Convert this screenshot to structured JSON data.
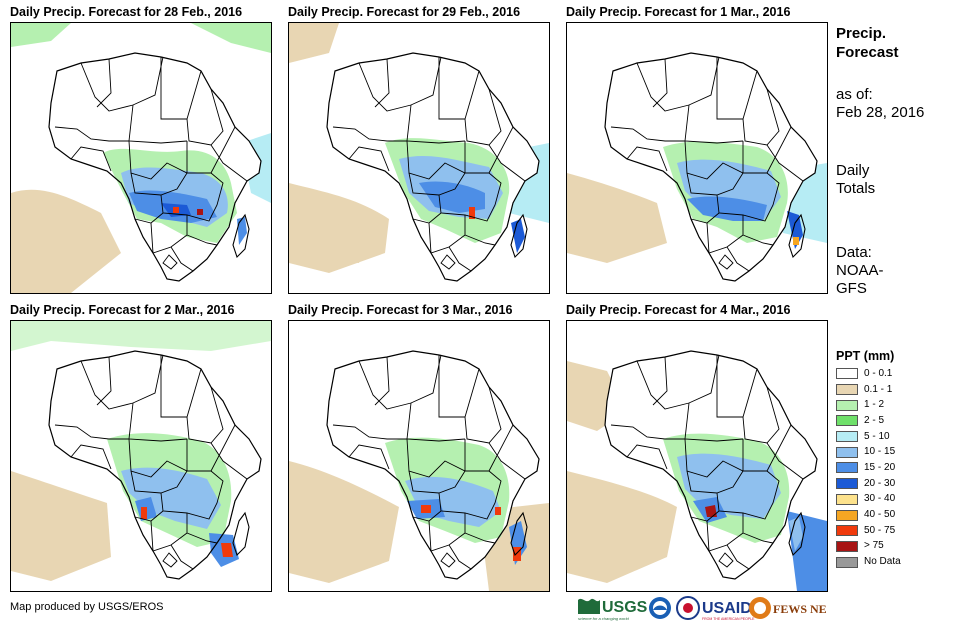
{
  "panels": [
    {
      "id": "p1",
      "title": "Daily Precip. Forecast for 28 Feb., 2016"
    },
    {
      "id": "p2",
      "title": "Daily Precip. Forecast for 29 Feb., 2016"
    },
    {
      "id": "p3",
      "title": "Daily Precip. Forecast for 1 Mar., 2016"
    },
    {
      "id": "p4",
      "title": "Daily Precip. Forecast for 2 Mar., 2016"
    },
    {
      "id": "p5",
      "title": "Daily Precip. Forecast for 3 Mar., 2016"
    },
    {
      "id": "p6",
      "title": "Daily Precip. Forecast for 4 Mar., 2016"
    }
  ],
  "side": {
    "title_line1": "Precip.",
    "title_line2": "Forecast",
    "asof_line1": "as of:",
    "asof_line2": "Feb 28, 2016",
    "daily_line1": "Daily",
    "daily_line2": "Totals",
    "data_line1": "Data:",
    "data_line2": "NOAA-",
    "data_line3": "GFS"
  },
  "legend": {
    "title": "PPT (mm)",
    "items": [
      {
        "label": "0 - 0.1",
        "color": "#ffffff"
      },
      {
        "label": "0.1 - 1",
        "color": "#e8d6b3"
      },
      {
        "label": "1 - 2",
        "color": "#b5f0b0"
      },
      {
        "label": "2 - 5",
        "color": "#6fe06a"
      },
      {
        "label": "5 - 10",
        "color": "#b6ecf4"
      },
      {
        "label": "10 - 15",
        "color": "#8fc0ee"
      },
      {
        "label": "15 - 20",
        "color": "#4d8ee6"
      },
      {
        "label": "20 - 30",
        "color": "#1c5ad6"
      },
      {
        "label": "30 - 40",
        "color": "#fde28c"
      },
      {
        "label": "40 - 50",
        "color": "#f5a623"
      },
      {
        "label": "50 - 75",
        "color": "#f03a0c"
      },
      {
        "label": "> 75",
        "color": "#a81414"
      },
      {
        "label": "No Data",
        "color": "#999999"
      }
    ]
  },
  "credit": "Map produced by USGS/EROS",
  "logos": {
    "usgs": "USGS",
    "usgs_tagline": "science for a changing world",
    "usaid": "USAID",
    "usaid_tagline": "FROM THE AMERICAN PEOPLE",
    "fewsnet": "FEWS NET"
  },
  "colors": {
    "tan": "#e8d6b3",
    "green_light": "#b5f0b0",
    "green": "#6fe06a",
    "blue_light": "#8fc0ee",
    "blue": "#4d8ee6",
    "blue_dark": "#1c5ad6",
    "red": "#f03a0c",
    "dark_red": "#a81414",
    "orange": "#f5a623"
  }
}
